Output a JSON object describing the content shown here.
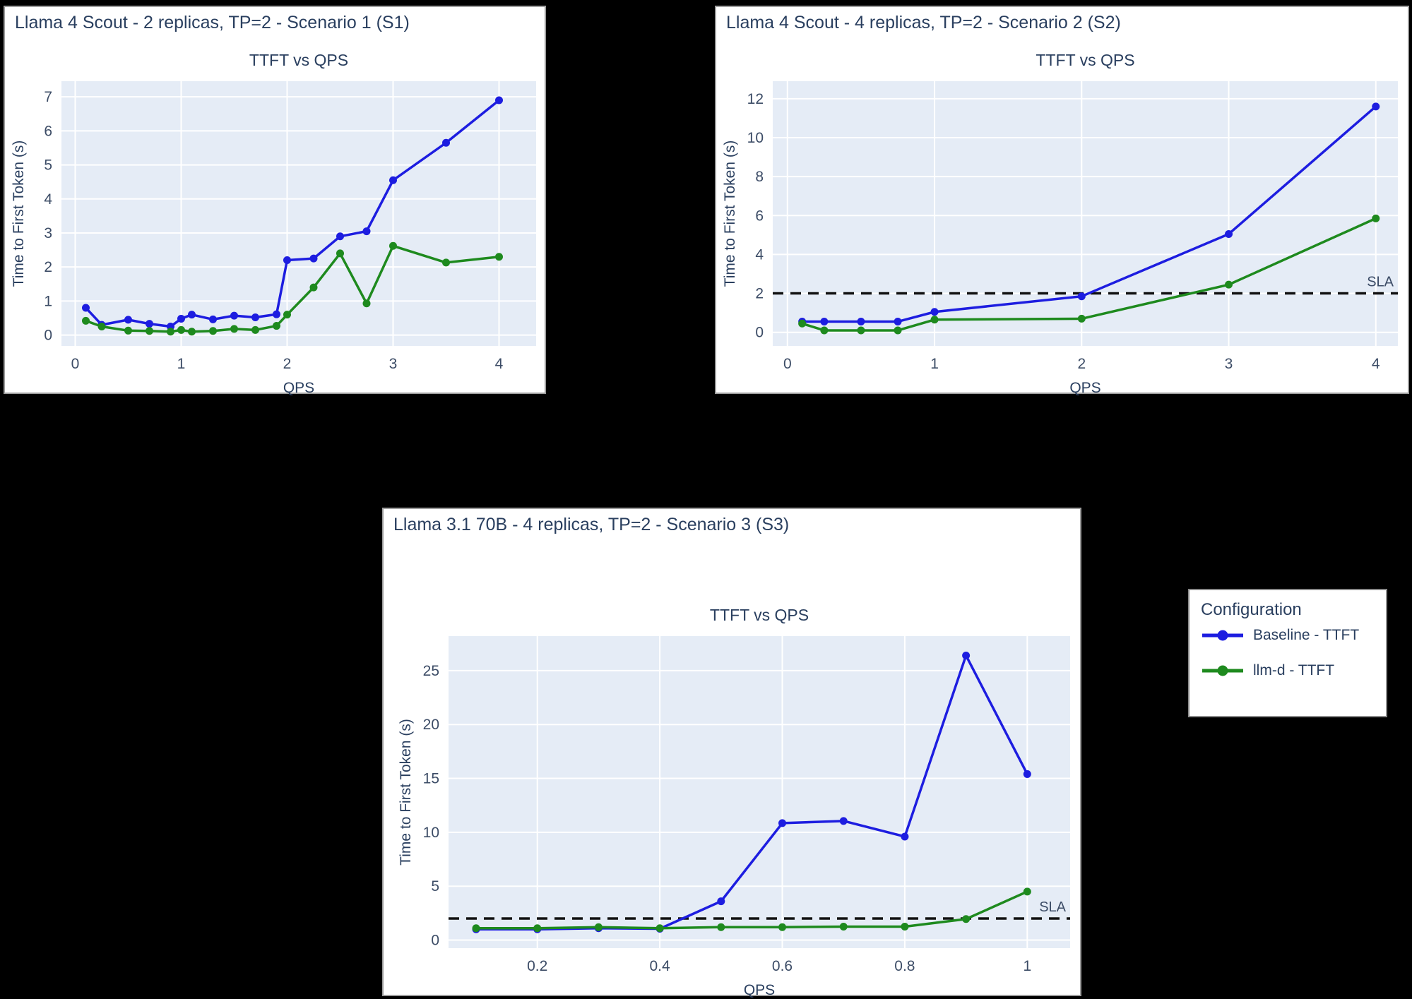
{
  "page": {
    "background": "#000000"
  },
  "colors": {
    "panel_bg": "#ffffff",
    "plot_bg": "#e5ecf6",
    "gridline": "#ffffff",
    "title_text": "#2a3f5f",
    "tick_text": "#3c4c66",
    "baseline_blue": "#1d1de0",
    "llmd_green": "#1e8a1e",
    "sla_line": "#111111"
  },
  "legend": {
    "title": "Configuration",
    "items": [
      {
        "label": "Baseline - TTFT",
        "color": "#1d1de0",
        "marker": "line-with-dot"
      },
      {
        "label": "llm-d - TTFT",
        "color": "#1e8a1e",
        "marker": "line-with-dot"
      }
    ]
  },
  "chart_data": [
    {
      "type": "line",
      "panel_title": "Llama 4 Scout - 2 replicas, TP=2 - Scenario 1 (S1)",
      "title": "TTFT vs QPS",
      "xlabel": "QPS",
      "ylabel": "Time to First Token (s)",
      "x": [
        0.1,
        0.25,
        0.5,
        0.7,
        0.9,
        1.0,
        1.1,
        1.3,
        1.5,
        1.7,
        1.9,
        2.0,
        2.25,
        2.5,
        2.75,
        3.0,
        3.5,
        4.0
      ],
      "series": [
        {
          "name": "Baseline - TTFT",
          "color": "#1d1de0",
          "values": [
            0.8,
            0.3,
            0.45,
            0.33,
            0.25,
            0.48,
            0.6,
            0.46,
            0.57,
            0.52,
            0.61,
            2.2,
            2.25,
            2.9,
            3.05,
            4.55,
            5.65,
            6.9
          ]
        },
        {
          "name": "llm-d - TTFT",
          "color": "#1e8a1e",
          "values": [
            0.42,
            0.25,
            0.13,
            0.12,
            0.1,
            0.15,
            0.1,
            0.12,
            0.18,
            0.15,
            0.27,
            0.6,
            1.4,
            2.4,
            0.93,
            2.62,
            2.13,
            2.3
          ]
        }
      ],
      "xticks": [
        0,
        1,
        2,
        3,
        4
      ],
      "yticks": [
        0,
        1,
        2,
        3,
        4,
        5,
        6,
        7
      ],
      "xlim": [
        -0.13,
        4.35
      ],
      "ylim": [
        -0.32,
        7.46
      ],
      "grid": true,
      "sla": null,
      "legend_position": "none"
    },
    {
      "type": "line",
      "panel_title": "Llama 4 Scout - 4 replicas, TP=2 - Scenario 2 (S2)",
      "title": "TTFT vs QPS",
      "xlabel": "QPS",
      "ylabel": "Time to First Token (s)",
      "x": [
        0.1,
        0.25,
        0.5,
        0.75,
        1.0,
        2.0,
        3.0,
        4.0
      ],
      "series": [
        {
          "name": "Baseline - TTFT",
          "color": "#1d1de0",
          "values": [
            0.55,
            0.55,
            0.55,
            0.55,
            1.05,
            1.85,
            5.05,
            11.6
          ]
        },
        {
          "name": "llm-d - TTFT",
          "color": "#1e8a1e",
          "values": [
            0.45,
            0.1,
            0.1,
            0.1,
            0.65,
            0.7,
            2.45,
            5.85
          ]
        }
      ],
      "xticks": [
        0,
        1,
        2,
        3,
        4
      ],
      "yticks": [
        0,
        2,
        4,
        6,
        8,
        10,
        12
      ],
      "xlim": [
        -0.1,
        4.15
      ],
      "ylim": [
        -0.7,
        12.9
      ],
      "grid": true,
      "sla": {
        "value": 2,
        "label": "SLA"
      },
      "legend_position": "none"
    },
    {
      "type": "line",
      "panel_title": "Llama 3.1 70B - 4 replicas, TP=2 - Scenario 3 (S3)",
      "title": "TTFT vs QPS",
      "xlabel": "QPS",
      "ylabel": "Time to First Token (s)",
      "x": [
        0.1,
        0.2,
        0.3,
        0.4,
        0.5,
        0.6,
        0.7,
        0.8,
        0.9,
        1.0
      ],
      "series": [
        {
          "name": "Baseline - TTFT",
          "color": "#1d1de0",
          "values": [
            1.0,
            1.0,
            1.1,
            1.05,
            3.6,
            10.85,
            11.05,
            9.6,
            26.4,
            15.4
          ]
        },
        {
          "name": "llm-d - TTFT",
          "color": "#1e8a1e",
          "values": [
            1.1,
            1.1,
            1.2,
            1.1,
            1.2,
            1.2,
            1.25,
            1.25,
            1.95,
            4.5
          ]
        }
      ],
      "xticks": [
        0.2,
        0.4,
        0.6,
        0.8,
        1
      ],
      "yticks": [
        0,
        5,
        10,
        15,
        20,
        25
      ],
      "xlim": [
        0.055,
        1.07
      ],
      "ylim": [
        -0.75,
        28.2
      ],
      "grid": true,
      "sla": {
        "value": 2,
        "label": "SLA"
      },
      "legend_position": "none"
    }
  ]
}
